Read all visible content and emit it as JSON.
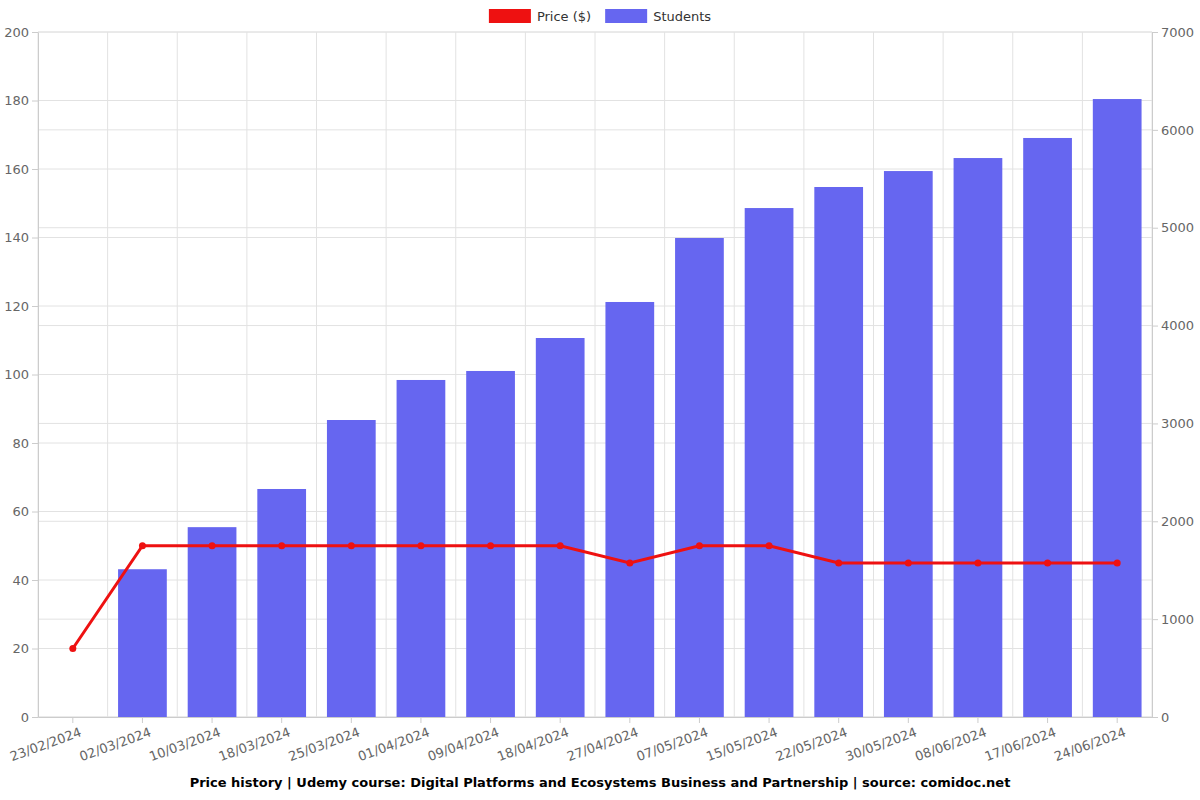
{
  "chart_data": {
    "type": "bar",
    "title": "Price history | Udemy course: Digital Platforms and Ecosystems Business and Partnership | source: comidoc.net",
    "categories": [
      "23/02/2024",
      "02/03/2024",
      "10/03/2024",
      "18/03/2024",
      "25/03/2024",
      "01/04/2024",
      "09/04/2024",
      "18/04/2024",
      "27/04/2024",
      "07/05/2024",
      "15/05/2024",
      "22/05/2024",
      "30/05/2024",
      "08/06/2024",
      "17/06/2024",
      "24/06/2024"
    ],
    "series": [
      {
        "name": "Price ($)",
        "type": "line",
        "color": "#ee1111",
        "marker": "circle",
        "values": [
          20,
          50,
          50,
          50,
          50,
          50,
          50,
          50,
          45,
          50,
          50,
          45,
          45,
          45,
          45,
          45
        ]
      },
      {
        "name": "Students",
        "type": "bar",
        "axis": "y2",
        "color": "#6666f0",
        "values": [
          null,
          1510,
          1940,
          2330,
          3035,
          3444,
          3536,
          3873,
          4241,
          4895,
          5201,
          5416,
          5579,
          5712,
          5917,
          6315
        ]
      }
    ],
    "ylim": [
      0,
      200
    ],
    "yticks": [
      0,
      20,
      40,
      60,
      80,
      100,
      120,
      140,
      160,
      180,
      200
    ],
    "y2lim": [
      0,
      7000
    ],
    "y2ticks": [
      0,
      1000,
      2000,
      3000,
      4000,
      5000,
      6000,
      7000
    ],
    "grid": true,
    "legend": "top"
  }
}
